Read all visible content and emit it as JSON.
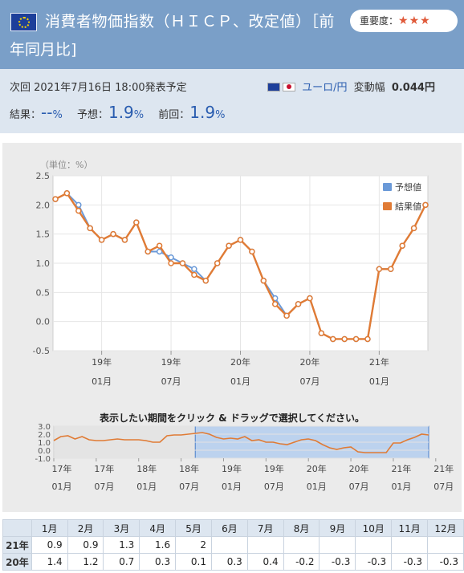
{
  "header": {
    "title_line1": "消費者物価指数（ＨＩＣＰ、改定値）［前",
    "title_line2": "年同月比]",
    "importance_label": "重要度：",
    "importance_stars": "★★★"
  },
  "info": {
    "next_release": "次回 2021年7月16日 18:00発表予定",
    "currency_pair": "ユーロ/円",
    "range_label": "変動幅",
    "range_value": "0.044円",
    "result_label": "結果：",
    "result_value": "--",
    "forecast_label": "予想：",
    "forecast_value": "1.9",
    "previous_label": "前回：",
    "previous_value": "1.9",
    "percent": "%"
  },
  "chart_data": {
    "type": "line",
    "ylabel": "（単位：%）",
    "ylim": [
      -0.5,
      2.5
    ],
    "yticks": [
      "2.5",
      "2.0",
      "1.5",
      "1.0",
      "0.5",
      "0.0",
      "-0.5"
    ],
    "x_labels": [
      {
        "year": "19年",
        "month": "01月",
        "index": 4
      },
      {
        "year": "19年",
        "month": "07月",
        "index": 10
      },
      {
        "year": "20年",
        "month": "01月",
        "index": 16
      },
      {
        "year": "20年",
        "month": "07月",
        "index": 22
      },
      {
        "year": "21年",
        "month": "01月",
        "index": 28
      }
    ],
    "series": [
      {
        "name": "予想値",
        "color": "#6b9ad8",
        "values": [
          2.1,
          2.2,
          2.0,
          1.6,
          1.4,
          1.5,
          1.4,
          1.7,
          1.2,
          1.2,
          1.1,
          1.0,
          0.9,
          0.7,
          1.0,
          1.3,
          1.4,
          1.2,
          0.7,
          0.4,
          0.1,
          0.3,
          0.4,
          -0.2,
          -0.3,
          -0.3,
          -0.3,
          -0.3,
          0.9,
          0.9,
          1.3,
          1.6,
          2.0
        ]
      },
      {
        "name": "結果値",
        "color": "#e07b35",
        "values": [
          2.1,
          2.2,
          1.9,
          1.6,
          1.4,
          1.5,
          1.4,
          1.7,
          1.2,
          1.3,
          1.0,
          1.0,
          0.8,
          0.7,
          1.0,
          1.3,
          1.4,
          1.2,
          0.7,
          0.3,
          0.1,
          0.3,
          0.4,
          -0.2,
          -0.3,
          -0.3,
          -0.3,
          -0.3,
          0.9,
          0.9,
          1.3,
          1.6,
          2.0
        ]
      }
    ],
    "navigator": {
      "title": "表示したい期間をクリック & ドラッグで選択してください。",
      "ylim": [
        -1.0,
        3.0
      ],
      "yticks": [
        "3.0",
        "2.0",
        "1.0",
        "0.0",
        "-1.0"
      ],
      "values": [
        1.2,
        1.7,
        1.8,
        1.4,
        1.7,
        1.3,
        1.2,
        1.2,
        1.3,
        1.4,
        1.3,
        1.3,
        1.3,
        1.2,
        1.0,
        1.0,
        1.8,
        1.9,
        1.9,
        2.0,
        2.1,
        2.2,
        2.0,
        1.6,
        1.4,
        1.5,
        1.4,
        1.7,
        1.2,
        1.3,
        1.0,
        1.0,
        0.8,
        0.7,
        1.0,
        1.3,
        1.4,
        1.2,
        0.7,
        0.3,
        0.1,
        0.3,
        0.4,
        -0.2,
        -0.3,
        -0.3,
        -0.3,
        -0.3,
        0.9,
        0.9,
        1.3,
        1.6,
        2.0,
        1.9
      ],
      "x_labels": [
        {
          "year": "17年",
          "month": "01月",
          "index": 0
        },
        {
          "year": "17年",
          "month": "07月",
          "index": 6
        },
        {
          "year": "18年",
          "month": "01月",
          "index": 12
        },
        {
          "year": "18年",
          "month": "07月",
          "index": 18
        },
        {
          "year": "19年",
          "month": "01月",
          "index": 24
        },
        {
          "year": "19年",
          "month": "07月",
          "index": 30
        },
        {
          "year": "20年",
          "month": "01月",
          "index": 36
        },
        {
          "year": "20年",
          "month": "07月",
          "index": 42
        },
        {
          "year": "21年",
          "month": "01月",
          "index": 48
        },
        {
          "year": "21年",
          "month": "07月",
          "index": 54
        }
      ],
      "selected_from_index": 20
    }
  },
  "table": {
    "months": [
      "1月",
      "2月",
      "3月",
      "4月",
      "5月",
      "6月",
      "7月",
      "8月",
      "9月",
      "10月",
      "11月",
      "12月"
    ],
    "rows": [
      {
        "year": "21年",
        "values": [
          "0.9",
          "0.9",
          "1.3",
          "1.6",
          "2",
          "",
          "",
          "",
          "",
          "",
          "",
          ""
        ]
      },
      {
        "year": "20年",
        "values": [
          "1.4",
          "1.2",
          "0.7",
          "0.3",
          "0.1",
          "0.3",
          "0.4",
          "-0.2",
          "-0.3",
          "-0.3",
          "-0.3",
          "-0.3"
        ]
      }
    ]
  }
}
